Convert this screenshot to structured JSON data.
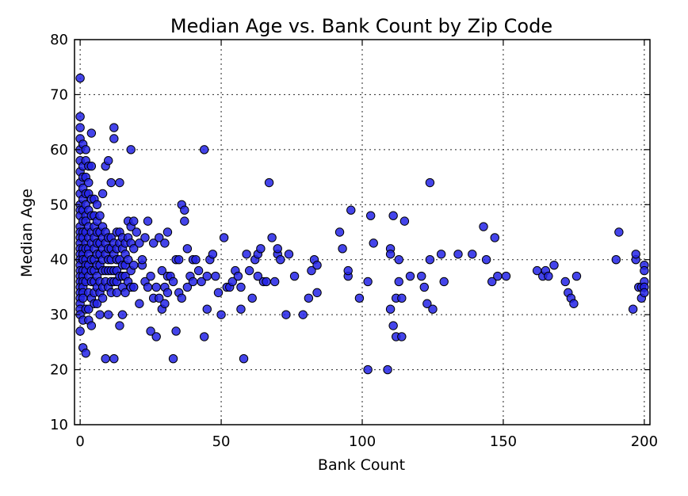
{
  "chart_data": {
    "type": "scatter",
    "title": "Median Age vs. Bank Count by Zip Code",
    "xlabel": "Bank Count",
    "ylabel": "Median Age",
    "xlim": [
      -2,
      202
    ],
    "ylim": [
      10,
      80
    ],
    "xticks": [
      0,
      50,
      100,
      150,
      200
    ],
    "yticks": [
      10,
      20,
      30,
      40,
      50,
      60,
      70,
      80
    ],
    "grid": true,
    "marker_color": "#2323e6",
    "series": [
      {
        "x": [
          0,
          0,
          0,
          0,
          0,
          0,
          0,
          0,
          0,
          0,
          0,
          0,
          0,
          0,
          0,
          0,
          0,
          0,
          0,
          0,
          0,
          0,
          0,
          0,
          0,
          0,
          0,
          0,
          0,
          0,
          1,
          1,
          1,
          1,
          1,
          1,
          1,
          1,
          1,
          1,
          1,
          1,
          1,
          1,
          1,
          1,
          1,
          1,
          1,
          1,
          2,
          2,
          2,
          2,
          2,
          2,
          2,
          2,
          2,
          2,
          2,
          2,
          2,
          2,
          2,
          2,
          3,
          3,
          3,
          3,
          3,
          3,
          3,
          3,
          3,
          3,
          3,
          3,
          3,
          4,
          4,
          4,
          4,
          4,
          4,
          4,
          4,
          4,
          4,
          4,
          5,
          5,
          5,
          5,
          5,
          5,
          5,
          5,
          5,
          5,
          6,
          6,
          6,
          6,
          6,
          6,
          6,
          6,
          6,
          7,
          7,
          7,
          7,
          7,
          7,
          7,
          7,
          8,
          8,
          8,
          8,
          8,
          8,
          8,
          8,
          9,
          9,
          9,
          9,
          9,
          9,
          9,
          10,
          10,
          10,
          10,
          10,
          10,
          10,
          11,
          11,
          11,
          11,
          11,
          11,
          11,
          12,
          12,
          12,
          12,
          12,
          12,
          12,
          13,
          13,
          13,
          13,
          13,
          13,
          14,
          14,
          14,
          14,
          14,
          14,
          15,
          15,
          15,
          15,
          15,
          15,
          16,
          16,
          16,
          16,
          16,
          17,
          17,
          17,
          17,
          18,
          18,
          18,
          18,
          18,
          19,
          19,
          19,
          19,
          20,
          21,
          21,
          22,
          22,
          23,
          23,
          24,
          24,
          25,
          25,
          26,
          26,
          27,
          27,
          28,
          28,
          29,
          29,
          30,
          30,
          30,
          31,
          31,
          31,
          32,
          33,
          33,
          34,
          34,
          35,
          35,
          36,
          36,
          37,
          37,
          38,
          38,
          39,
          40,
          40,
          41,
          42,
          43,
          44,
          44,
          45,
          45,
          46,
          47,
          48,
          49,
          50,
          51,
          52,
          53,
          54,
          55,
          56,
          57,
          57,
          58,
          59,
          60,
          61,
          62,
          63,
          63,
          64,
          65,
          66,
          67,
          68,
          69,
          70,
          70,
          71,
          73,
          74,
          76,
          79,
          81,
          82,
          83,
          84,
          84,
          92,
          93,
          95,
          95,
          96,
          99,
          102,
          102,
          103,
          104,
          109,
          110,
          110,
          110,
          111,
          111,
          112,
          112,
          113,
          113,
          114,
          114,
          115,
          117,
          121,
          122,
          123,
          124,
          124,
          125,
          128,
          129,
          134,
          139,
          143,
          144,
          146,
          147,
          148,
          151,
          162,
          164,
          165,
          166,
          168,
          172,
          173,
          174,
          175,
          176,
          190,
          191,
          196,
          197,
          197,
          198,
          199,
          199,
          200,
          200,
          200,
          200,
          200
        ],
        "y": [
          73,
          66,
          64,
          62,
          60,
          58,
          56,
          54,
          52,
          50,
          49,
          48,
          46,
          45,
          44,
          43,
          42,
          41,
          40,
          39,
          38,
          37,
          36,
          35,
          34,
          33,
          32,
          31,
          30,
          27,
          61,
          57,
          55,
          53,
          51,
          49,
          47,
          45,
          44,
          42,
          41,
          40,
          38,
          37,
          36,
          35,
          34,
          33,
          29,
          24,
          60,
          58,
          55,
          52,
          50,
          48,
          47,
          45,
          43,
          42,
          40,
          39,
          38,
          36,
          31,
          23,
          57,
          54,
          52,
          49,
          46,
          44,
          42,
          41,
          39,
          37,
          34,
          31,
          29,
          63,
          57,
          51,
          48,
          45,
          43,
          40,
          38,
          36,
          33,
          28,
          51,
          48,
          46,
          44,
          42,
          40,
          38,
          36,
          34,
          32,
          50,
          47,
          45,
          43,
          41,
          39,
          37,
          35,
          32,
          48,
          45,
          43,
          41,
          39,
          36,
          34,
          30,
          52,
          46,
          44,
          42,
          40,
          38,
          35,
          33,
          57,
          45,
          43,
          41,
          38,
          36,
          22,
          58,
          44,
          42,
          40,
          38,
          35,
          30,
          54,
          44,
          42,
          40,
          38,
          36,
          34,
          64,
          62,
          43,
          41,
          38,
          36,
          22,
          45,
          42,
          40,
          38,
          36,
          34,
          54,
          45,
          43,
          40,
          37,
          28,
          44,
          42,
          39,
          37,
          35,
          30,
          43,
          41,
          39,
          37,
          34,
          47,
          44,
          40,
          36,
          60,
          46,
          43,
          38,
          35,
          47,
          42,
          39,
          35,
          45,
          32,
          43,
          39,
          40,
          36,
          44,
          35,
          47,
          27,
          37,
          33,
          43,
          26,
          35,
          33,
          44,
          31,
          38,
          35,
          43,
          32,
          37,
          34,
          45,
          37,
          22,
          36,
          40,
          27,
          40,
          34,
          50,
          33,
          47,
          49,
          35,
          42,
          37,
          40,
          36,
          40,
          38,
          36,
          26,
          60,
          31,
          37,
          40,
          41,
          37,
          34,
          30,
          44,
          35,
          35,
          36,
          38,
          37,
          35,
          31,
          22,
          41,
          38,
          33,
          40,
          41,
          37,
          42,
          36,
          36,
          54,
          44,
          36,
          41,
          42,
          40,
          30,
          41,
          37,
          30,
          33,
          38,
          40,
          34,
          39,
          45,
          42,
          37,
          38,
          49,
          33,
          36,
          20,
          48,
          43,
          20,
          31,
          42,
          41,
          48,
          28,
          33,
          26,
          40,
          36,
          26,
          33,
          47,
          37,
          37,
          35,
          32,
          54,
          40,
          31,
          41,
          36,
          41,
          41,
          46,
          40,
          36,
          44,
          37,
          37,
          38,
          37,
          38,
          37,
          39,
          36,
          34,
          33,
          32,
          37,
          40,
          45,
          31,
          40,
          41,
          35,
          35,
          33,
          39,
          38,
          36,
          35,
          34
        ],
        "marker": "circle"
      }
    ]
  }
}
